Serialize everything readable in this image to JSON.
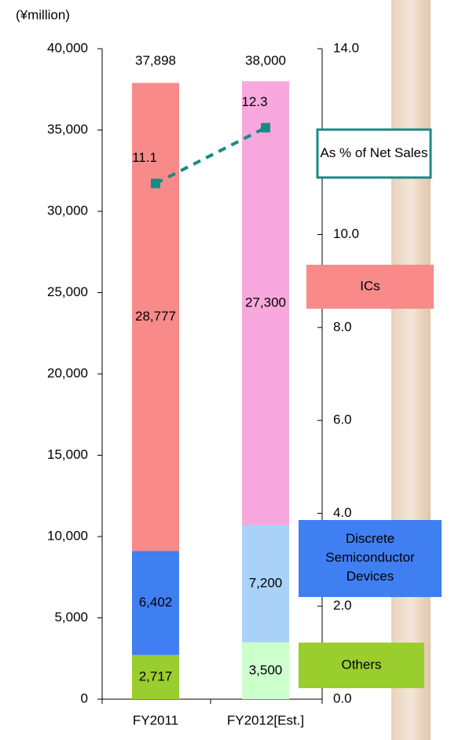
{
  "chart_data": {
    "type": "bar",
    "stacked": true,
    "y_label": "(¥million)",
    "categories": [
      "FY2011",
      "FY2012[Est.]"
    ],
    "series": [
      {
        "name": "Others",
        "colors": [
          "#9acd2e",
          "#ccffcc"
        ],
        "values": [
          2717,
          3500
        ],
        "value_labels": [
          "2,717",
          "3,500"
        ]
      },
      {
        "name": "Discrete Semiconductor Devices",
        "colors": [
          "#3f7ff2",
          "#aad2f8"
        ],
        "values": [
          6402,
          7200
        ],
        "value_labels": [
          "6,402",
          "7,200"
        ]
      },
      {
        "name": "ICs",
        "colors": [
          "#f88a8a",
          "#f8a8dc"
        ],
        "values": [
          28777,
          27300
        ],
        "value_labels": [
          "28,777",
          "27,300"
        ]
      },
      {
        "name": "As % of Net Sales",
        "type": "line",
        "axis": "y2",
        "color": "#1a8a86",
        "values": [
          11.1,
          12.3
        ]
      }
    ],
    "totals": [
      37898,
      38000
    ],
    "total_labels": [
      "37,898",
      "38,000"
    ],
    "ylim": [
      0,
      40000
    ],
    "yticks": [
      {
        "value": 0,
        "label": "0"
      },
      {
        "value": 5000,
        "label": "5,000"
      },
      {
        "value": 10000,
        "label": "10,000"
      },
      {
        "value": 15000,
        "label": "15,000"
      },
      {
        "value": 20000,
        "label": "20,000"
      },
      {
        "value": 25000,
        "label": "25,000"
      },
      {
        "value": 30000,
        "label": "30,000"
      },
      {
        "value": 35000,
        "label": "35,000"
      },
      {
        "value": 40000,
        "label": "40,000"
      }
    ],
    "y2lim": [
      0,
      14
    ],
    "y2ticks": [
      {
        "value": 0,
        "label": "0.0"
      },
      {
        "value": 2,
        "label": "2.0"
      },
      {
        "value": 4,
        "label": "4.0"
      },
      {
        "value": 6,
        "label": "6.0"
      },
      {
        "value": 8,
        "label": "8.0"
      },
      {
        "value": 10,
        "label": "10.0"
      },
      {
        "value": 14,
        "label": "14.0"
      }
    ]
  }
}
